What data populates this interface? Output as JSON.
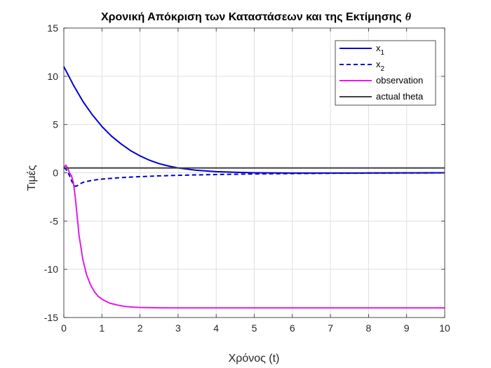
{
  "chart_data": {
    "type": "line",
    "title": "Χρονική Απόκριση των Καταστάσεων και της Εκτίμησης",
    "title_symbol": "θ",
    "xlabel": "Χρόνος (t)",
    "ylabel": "Τιμές",
    "xlim": [
      0,
      10
    ],
    "ylim": [
      -15,
      15
    ],
    "xticks": [
      0,
      1,
      2,
      3,
      4,
      5,
      6,
      7,
      8,
      9,
      10
    ],
    "yticks": [
      -15,
      -10,
      -5,
      0,
      5,
      10,
      15
    ],
    "grid": true,
    "legend_position": "top-right",
    "series": [
      {
        "name": "x",
        "name_subscript": "1",
        "color": "#0000cc",
        "style": "solid",
        "x": [
          0,
          0.25,
          0.5,
          0.75,
          1.0,
          1.25,
          1.5,
          1.75,
          2.0,
          2.25,
          2.5,
          2.75,
          3.0,
          3.5,
          4.0,
          4.5,
          5.0,
          6.0,
          7.0,
          8.0,
          9.0,
          10.0
        ],
        "y": [
          11.0,
          9.1,
          7.4,
          6.0,
          4.8,
          3.8,
          3.0,
          2.3,
          1.75,
          1.3,
          0.95,
          0.7,
          0.5,
          0.25,
          0.12,
          0.05,
          0.0,
          -0.03,
          -0.03,
          -0.02,
          -0.01,
          0.0
        ]
      },
      {
        "name": "x",
        "name_subscript": "2",
        "color": "#0000cc",
        "style": "dashed",
        "x": [
          0,
          0.05,
          0.1,
          0.15,
          0.2,
          0.25,
          0.3,
          0.35,
          0.4,
          0.5,
          0.6,
          0.75,
          1.0,
          1.5,
          2.0,
          2.5,
          3.0,
          4.0,
          5.0,
          6.0,
          7.0,
          8.0,
          9.0,
          10.0
        ],
        "y": [
          0.5,
          0.4,
          0.1,
          -0.3,
          -0.8,
          -1.2,
          -1.4,
          -1.35,
          -1.2,
          -1.0,
          -0.9,
          -0.78,
          -0.65,
          -0.5,
          -0.4,
          -0.32,
          -0.26,
          -0.18,
          -0.12,
          -0.08,
          -0.05,
          -0.03,
          -0.02,
          -0.01
        ]
      },
      {
        "name": "observation",
        "color": "#e619e6",
        "style": "solid",
        "x": [
          0,
          0.05,
          0.1,
          0.15,
          0.2,
          0.25,
          0.3,
          0.35,
          0.4,
          0.5,
          0.6,
          0.7,
          0.8,
          0.9,
          1.0,
          1.2,
          1.4,
          1.6,
          1.8,
          2.0,
          2.5,
          3.0,
          3.5,
          4.0,
          5.0,
          6.0,
          7.0,
          8.0,
          9.0,
          10.0
        ],
        "y": [
          0.5,
          0.8,
          0.5,
          0.0,
          -0.3,
          -1.0,
          -2.5,
          -4.5,
          -6.5,
          -9.0,
          -10.6,
          -11.6,
          -12.3,
          -12.8,
          -13.1,
          -13.5,
          -13.7,
          -13.85,
          -13.92,
          -13.96,
          -13.99,
          -14.0,
          -14.0,
          -14.0,
          -14.0,
          -14.0,
          -14.0,
          -14.0,
          -14.0,
          -14.0
        ]
      },
      {
        "name": "actual theta",
        "color": "#404040",
        "style": "solid",
        "x": [
          0,
          10
        ],
        "y": [
          0.5,
          0.5
        ]
      }
    ]
  }
}
